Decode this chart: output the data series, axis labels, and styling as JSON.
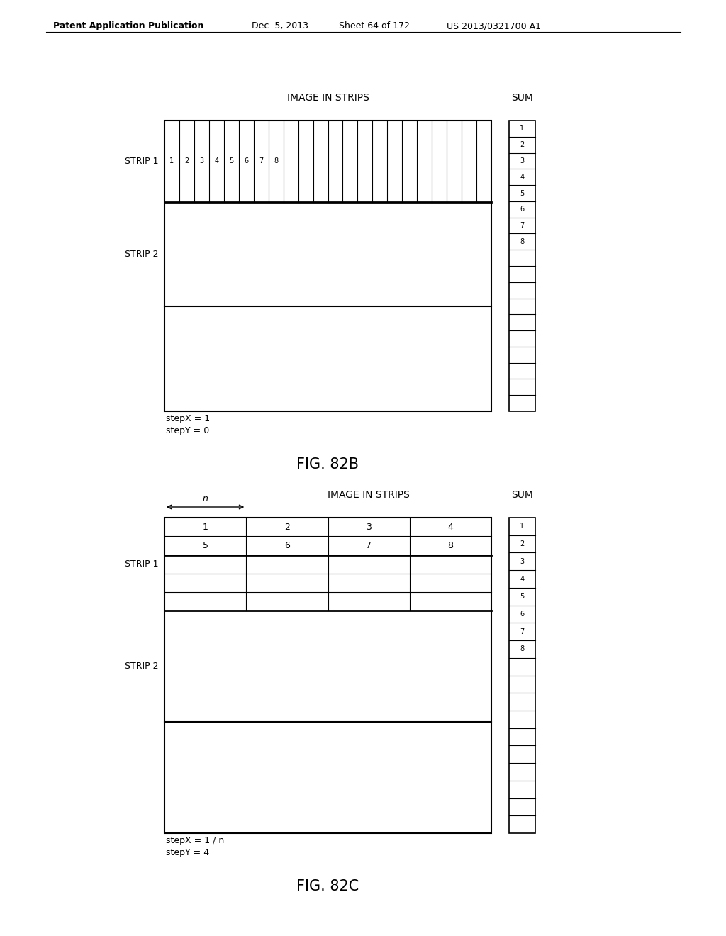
{
  "bg_color": "#ffffff",
  "header_text": "Patent Application Publication",
  "header_date": "Dec. 5, 2013",
  "header_sheet": "Sheet 64 of 172",
  "header_patent": "US 2013/0321700 A1",
  "fig82b": {
    "label": "FIG. 82B",
    "title": "IMAGE IN STRIPS",
    "sum_label": "SUM",
    "strip1_label": "STRIP 1",
    "strip2_label": "STRIP 2",
    "step_label": "stepX = 1\nstepY = 0",
    "num_total_cols": 22,
    "num_sum_rows": 18
  },
  "fig82c": {
    "label": "FIG. 82C",
    "title": "IMAGE IN STRIPS",
    "sum_label": "SUM",
    "strip1_label": "STRIP 1",
    "strip2_label": "STRIP 2",
    "step_label": "stepX = 1 / n\nstepY = 4",
    "n_arrow_label": "n",
    "num_cols": 4,
    "num_sum_rows": 18
  }
}
